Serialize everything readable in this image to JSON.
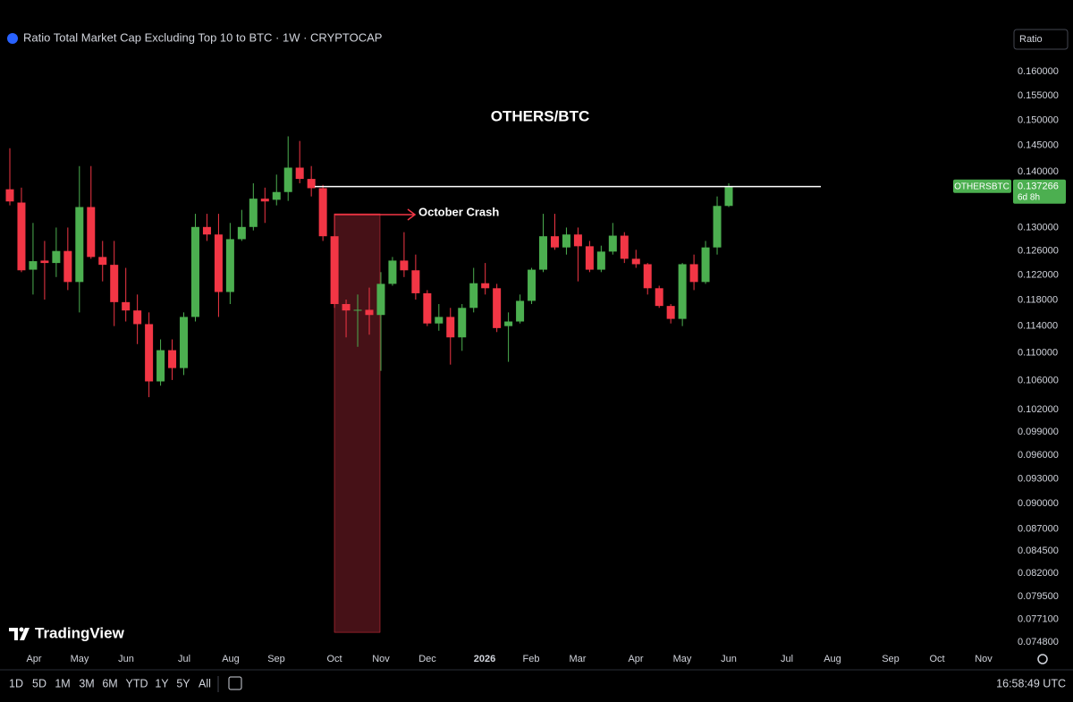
{
  "header": {
    "title": "Ratio Total Market Cap Excluding Top 10 to BTC · 1W · CRYPTOCAP",
    "scale_button": "Ratio"
  },
  "brand": "TradingView",
  "chart_data": {
    "type": "candlestick",
    "title": "OTHERS/BTC",
    "annotation": "October Crash",
    "log_scale": true,
    "up_color": "#4caf50",
    "down_color": "#f23645",
    "level_line": 0.1373,
    "highlight_range": [
      0.0758,
      0.1324
    ],
    "symbol_label": "OTHERSBTC",
    "countdown": "6d 8h",
    "x_labels": [
      "Apr",
      "May",
      "Jun",
      "Jul",
      "Aug",
      "Sep",
      "Oct",
      "Nov",
      "Dec",
      "2026",
      "Feb",
      "Mar",
      "Apr",
      "May",
      "Jun",
      "Jul",
      "Aug",
      "Sep",
      "Oct",
      "Nov"
    ],
    "ylim": [
      0.0742,
      0.1639
    ],
    "yticks": [
      {
        "value": 0.16,
        "label": "0.160000"
      },
      {
        "value": 0.155,
        "label": "0.155000"
      },
      {
        "value": 0.15,
        "label": "0.150000"
      },
      {
        "value": 0.145,
        "label": "0.145000"
      },
      {
        "value": 0.14,
        "label": "0.140000"
      },
      {
        "value": 0.13,
        "label": "0.130000"
      },
      {
        "value": 0.126,
        "label": "0.126000"
      },
      {
        "value": 0.122,
        "label": "0.122000"
      },
      {
        "value": 0.118,
        "label": "0.118000"
      },
      {
        "value": 0.114,
        "label": "0.114000"
      },
      {
        "value": 0.11,
        "label": "0.110000"
      },
      {
        "value": 0.106,
        "label": "0.106000"
      },
      {
        "value": 0.102,
        "label": "0.102000"
      },
      {
        "value": 0.099,
        "label": "0.099000"
      },
      {
        "value": 0.096,
        "label": "0.096000"
      },
      {
        "value": 0.093,
        "label": "0.093000"
      },
      {
        "value": 0.09,
        "label": "0.090000"
      },
      {
        "value": 0.087,
        "label": "0.087000"
      },
      {
        "value": 0.0845,
        "label": "0.084500"
      },
      {
        "value": 0.082,
        "label": "0.082000"
      },
      {
        "value": 0.0795,
        "label": "0.079500"
      },
      {
        "value": 0.0771,
        "label": "0.077100"
      },
      {
        "value": 0.0748,
        "label": "0.074800"
      }
    ],
    "open": [
      0.1368,
      0.1344,
      0.1229,
      0.1244,
      0.124,
      0.126,
      0.1209,
      0.1336,
      0.125,
      0.1237,
      0.1177,
      0.1164,
      0.1143,
      0.1059,
      0.1104,
      0.1078,
      0.1154,
      0.1301,
      0.1288,
      0.1193,
      0.128,
      0.1301,
      0.1351,
      0.1349,
      0.1363,
      0.1408,
      0.1387,
      0.137,
      0.1285,
      0.1174,
      0.1164,
      0.1165,
      0.1157,
      0.1206,
      0.1244,
      0.1228,
      0.1191,
      0.1144,
      0.1154,
      0.1123,
      0.1168,
      0.1207,
      0.1199,
      0.114,
      0.1147,
      0.1179,
      0.1229,
      0.1285,
      0.1266,
      0.1288,
      0.1268,
      0.1229,
      0.1259,
      0.1286,
      0.1247,
      0.1238,
      0.1199,
      0.1171,
      0.1151,
      0.1238,
      0.1209,
      0.1266,
      0.1338
    ],
    "high": [
      0.1445,
      0.1371,
      0.1308,
      0.1277,
      0.13,
      0.13,
      0.1411,
      0.1411,
      0.1277,
      0.1277,
      0.1232,
      0.1189,
      0.1161,
      0.112,
      0.112,
      0.1161,
      0.1324,
      0.1324,
      0.1324,
      0.1308,
      0.1331,
      0.1379,
      0.1371,
      0.1395,
      0.1468,
      0.1459,
      0.1411,
      0.1376,
      0.1324,
      0.1181,
      0.1189,
      0.12,
      0.1225,
      0.125,
      0.1292,
      0.1254,
      0.1196,
      0.1174,
      0.1168,
      0.1174,
      0.1232,
      0.124,
      0.1206,
      0.1161,
      0.1189,
      0.1232,
      0.1324,
      0.1324,
      0.13,
      0.13,
      0.1277,
      0.1269,
      0.1308,
      0.1292,
      0.1262,
      0.124,
      0.1203,
      0.1174,
      0.124,
      0.1254,
      0.1277,
      0.1355,
      0.1379
    ],
    "low": [
      0.1339,
      0.1225,
      0.1189,
      0.1181,
      0.1217,
      0.1196,
      0.1161,
      0.1247,
      0.121,
      0.114,
      0.1147,
      0.1113,
      0.1037,
      0.1053,
      0.1061,
      0.1068,
      0.1147,
      0.1277,
      0.1154,
      0.1174,
      0.1277,
      0.1295,
      0.1308,
      0.1339,
      0.1347,
      0.1379,
      0.1355,
      0.1277,
      0.1168,
      0.1123,
      0.1109,
      0.1127,
      0.1074,
      0.1203,
      0.1217,
      0.1181,
      0.114,
      0.1133,
      0.1083,
      0.1103,
      0.1161,
      0.1189,
      0.1131,
      0.1087,
      0.1144,
      0.1174,
      0.1225,
      0.1262,
      0.1254,
      0.121,
      0.1225,
      0.1225,
      0.1254,
      0.124,
      0.1232,
      0.1189,
      0.1168,
      0.1144,
      0.114,
      0.1196,
      0.1206,
      0.1254,
      0.1336
    ],
    "close": [
      0.1346,
      0.1228,
      0.1243,
      0.124,
      0.126,
      0.1209,
      0.1336,
      0.125,
      0.1237,
      0.1177,
      0.1164,
      0.1143,
      0.1059,
      0.1104,
      0.1078,
      0.1154,
      0.1301,
      0.1288,
      0.1193,
      0.128,
      0.1301,
      0.1351,
      0.1346,
      0.1363,
      0.1408,
      0.1387,
      0.137,
      0.1285,
      0.1174,
      0.1164,
      0.1165,
      0.1157,
      0.1206,
      0.1244,
      0.1228,
      0.1191,
      0.1144,
      0.1154,
      0.1123,
      0.1168,
      0.1207,
      0.1199,
      0.1137,
      0.1147,
      0.1179,
      0.1229,
      0.1285,
      0.1266,
      0.1288,
      0.1268,
      0.1229,
      0.1259,
      0.1286,
      0.1247,
      0.1238,
      0.1199,
      0.1171,
      0.1151,
      0.1238,
      0.1209,
      0.1266,
      0.1338,
      0.137266
    ]
  },
  "toolbar": {
    "ranges": [
      "1D",
      "5D",
      "1M",
      "3M",
      "6M",
      "YTD",
      "1Y",
      "5Y",
      "All"
    ],
    "clock": "16:58:49 UTC"
  }
}
